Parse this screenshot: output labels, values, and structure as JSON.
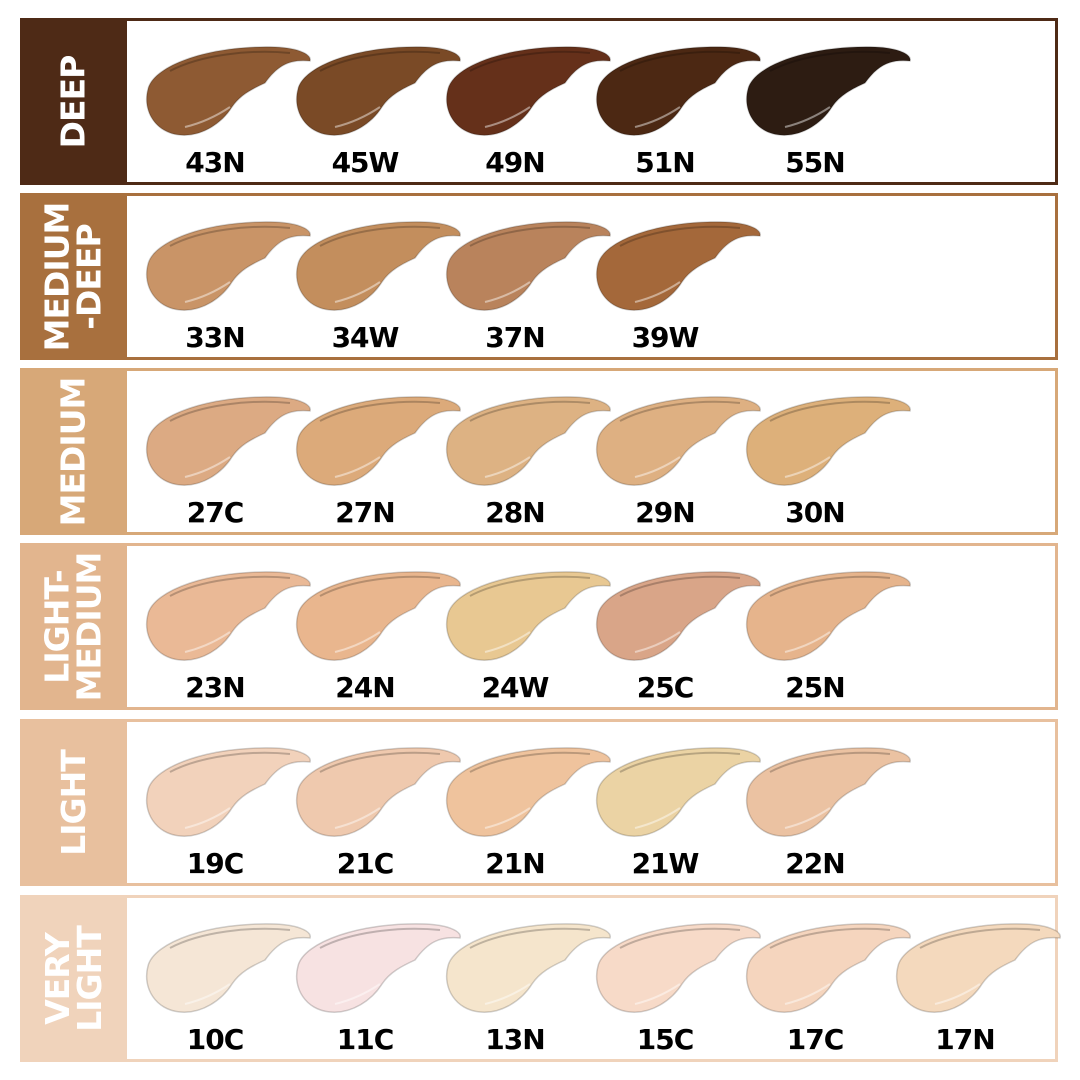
{
  "categories": [
    {
      "name": "DEEP",
      "color": "#4e2a16",
      "shades": [
        {
          "code": "43N",
          "color": "#8e5a33"
        },
        {
          "code": "45W",
          "color": "#7a4a26"
        },
        {
          "code": "49N",
          "color": "#65301a"
        },
        {
          "code": "51N",
          "color": "#4c2813"
        },
        {
          "code": "55N",
          "color": "#2d1c12"
        }
      ]
    },
    {
      "name": "MEDIUM\n-DEEP",
      "color": "#a8703e",
      "shades": [
        {
          "code": "33N",
          "color": "#c99467"
        },
        {
          "code": "34W",
          "color": "#c38e5d"
        },
        {
          "code": "37N",
          "color": "#b9835c"
        },
        {
          "code": "39W",
          "color": "#a4683a"
        }
      ]
    },
    {
      "name": "MEDIUM",
      "color": "#d7a878",
      "shades": [
        {
          "code": "27C",
          "color": "#dcaa83"
        },
        {
          "code": "27N",
          "color": "#dcaa7a"
        },
        {
          "code": "28N",
          "color": "#ddb283"
        },
        {
          "code": "29N",
          "color": "#deb082"
        },
        {
          "code": "30N",
          "color": "#ddb07a"
        }
      ]
    },
    {
      "name": "LIGHT-\nMEDIUM",
      "color": "#e2b58e",
      "shades": [
        {
          "code": "23N",
          "color": "#eab996"
        },
        {
          "code": "24N",
          "color": "#e9b68e"
        },
        {
          "code": "24W",
          "color": "#e8c892"
        },
        {
          "code": "25C",
          "color": "#d9a588"
        },
        {
          "code": "25N",
          "color": "#e6b48c"
        }
      ]
    },
    {
      "name": "LIGHT",
      "color": "#e8c09e",
      "shades": [
        {
          "code": "19C",
          "color": "#f2d2bb"
        },
        {
          "code": "21C",
          "color": "#efc9ae"
        },
        {
          "code": "21N",
          "color": "#efc39d"
        },
        {
          "code": "21W",
          "color": "#ebd3a4"
        },
        {
          "code": "22N",
          "color": "#ebc2a2"
        }
      ]
    },
    {
      "name": "VERY\nLIGHT",
      "color": "#f0d3bb",
      "shades": [
        {
          "code": "10C",
          "color": "#f5e6d6"
        },
        {
          "code": "11C",
          "color": "#f7e2e2"
        },
        {
          "code": "13N",
          "color": "#f5e5cc"
        },
        {
          "code": "15C",
          "color": "#f7dac8"
        },
        {
          "code": "17C",
          "color": "#f5d5be"
        },
        {
          "code": "17N",
          "color": "#f4d9bd"
        }
      ]
    }
  ]
}
